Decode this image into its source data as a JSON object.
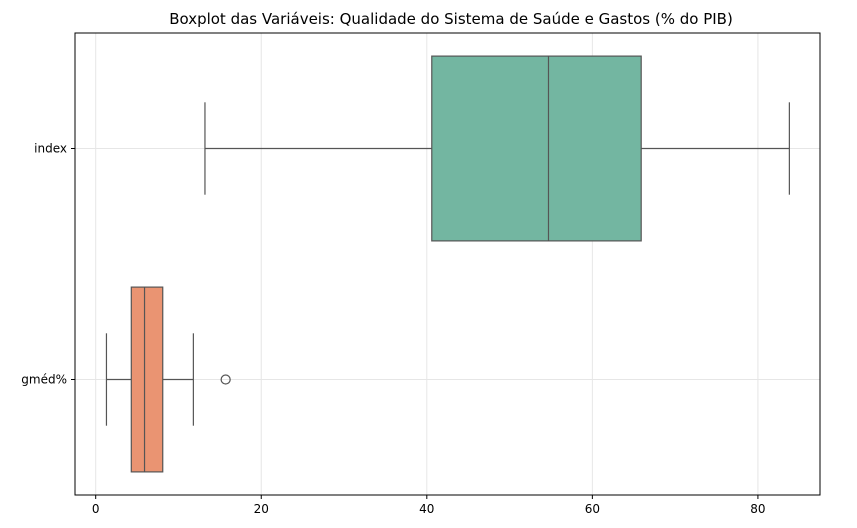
{
  "chart_data": {
    "type": "boxplot",
    "orientation": "horizontal",
    "title": "Boxplot das Variáveis: Qualidade do Sistema de Saúde e Gastos (% do PIB)",
    "xlabel": "",
    "ylabel": "",
    "xlim": [
      -2.5,
      87.5
    ],
    "xticks": [
      0,
      20,
      40,
      60,
      80
    ],
    "grid": true,
    "categories": [
      "index",
      "gméd%"
    ],
    "boxes": [
      {
        "label": "index",
        "whisker_low": 13.2,
        "q1": 40.6,
        "median": 54.7,
        "q3": 65.9,
        "whisker_high": 83.8,
        "outliers": [],
        "color": "#73b6a1"
      },
      {
        "label": "gméd%",
        "whisker_low": 1.3,
        "q1": 4.3,
        "median": 5.9,
        "q3": 8.1,
        "whisker_high": 11.8,
        "outliers": [
          15.7
        ],
        "color": "#ea9472"
      }
    ]
  }
}
